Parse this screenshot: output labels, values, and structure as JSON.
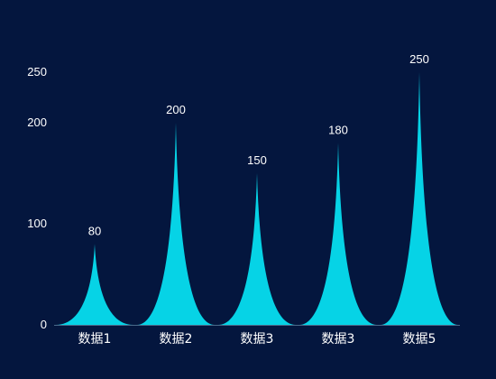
{
  "chart_data": {
    "type": "bar",
    "bar_shape": "pictorial-spike",
    "categories": [
      "数据1",
      "数据2",
      "数据3",
      "数据3",
      "数据5"
    ],
    "values": [
      80,
      200,
      150,
      180,
      250
    ],
    "y_ticks": [
      "0",
      "100",
      "200",
      "250"
    ],
    "ylim": [
      0,
      250
    ],
    "grid": false,
    "legend": "none",
    "data_labels": [
      "80",
      "200",
      "150",
      "180",
      "250"
    ],
    "colors": {
      "background": "#04163e",
      "bar_fill": "#06d3e6",
      "axis_line": "#4a6a8a",
      "text": "#ffffff"
    }
  }
}
